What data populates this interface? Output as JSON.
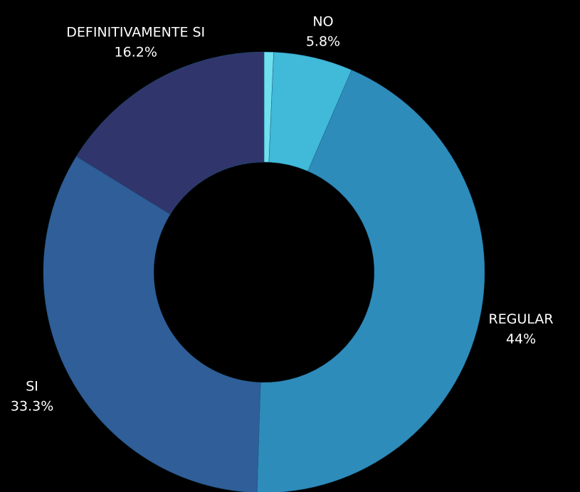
{
  "chart_data": {
    "type": "donut",
    "categories": [
      null,
      "NO",
      "REGULAR",
      "SI",
      "DEFINITIVAMENTE SI"
    ],
    "values": [
      0.7,
      5.8,
      44,
      33.3,
      16.2
    ],
    "value_labels": [
      null,
      "5.8%",
      "44%",
      "33.3%",
      "16.2%"
    ],
    "colors": [
      "#6fe0ee",
      "#41b9d8",
      "#2e8cbb",
      "#2f5e99",
      "#30356c"
    ]
  }
}
